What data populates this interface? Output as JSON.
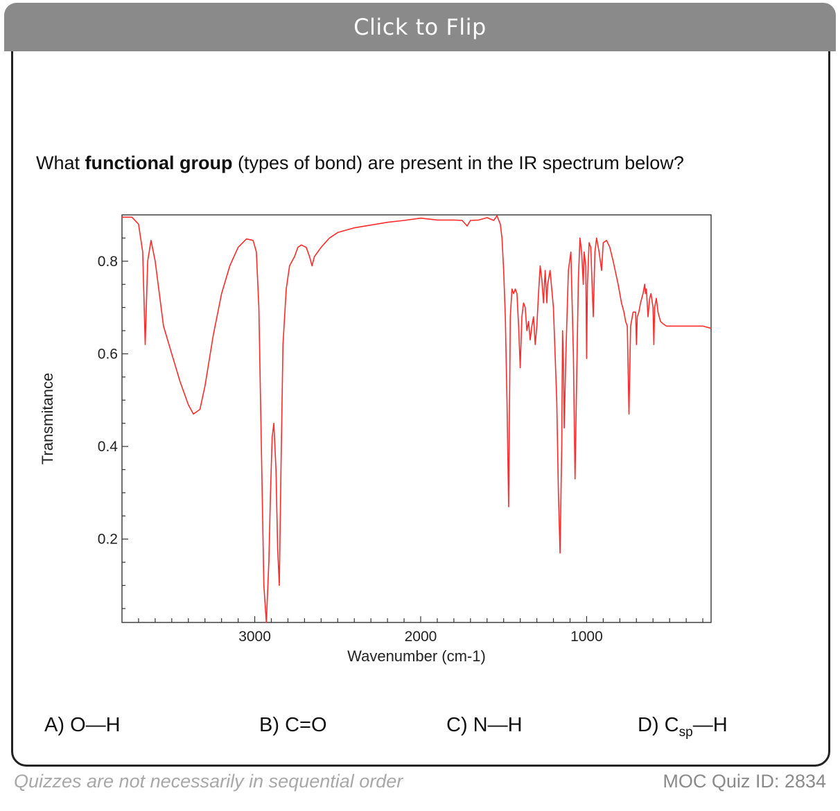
{
  "flip_bar": {
    "label": "Click to Flip"
  },
  "question": {
    "prefix": "What ",
    "emphasis": "functional group",
    "suffix": " (types of bond) are present in the IR spectrum below?"
  },
  "answers": [
    {
      "letter": "A)",
      "left": "O",
      "bond": "—",
      "right": "H",
      "sub": ""
    },
    {
      "letter": "B)",
      "left": "C=O",
      "bond": "",
      "right": "",
      "sub": ""
    },
    {
      "letter": "C)",
      "left": "N",
      "bond": "—",
      "right": "H",
      "sub": ""
    },
    {
      "letter": "D)",
      "left": "C",
      "bond": "—",
      "right": "H",
      "sub": "sp"
    }
  ],
  "footer": {
    "note": "Quizzes are not necessarily in sequential order",
    "quiz_id": "MOC Quiz ID: 2834"
  },
  "colors": {
    "spectrum": "#ff2a2a",
    "flip_bar": "#8a8a8a",
    "axis": "#333333"
  },
  "chart_data": {
    "type": "line",
    "title": "",
    "xlabel": "Wavenumber (cm-1)",
    "ylabel": "Transmitance",
    "xlim": [
      3800,
      250
    ],
    "ylim": [
      0.02,
      0.9
    ],
    "x_ticks": [
      3000,
      2000,
      1000
    ],
    "y_ticks": [
      0.2,
      0.4,
      0.6,
      0.8
    ],
    "grid": false,
    "series": [
      {
        "values": [
          [
            3800,
            0.895
          ],
          [
            3740,
            0.895
          ],
          [
            3700,
            0.88
          ],
          [
            3675,
            0.82
          ],
          [
            3660,
            0.62
          ],
          [
            3645,
            0.8
          ],
          [
            3625,
            0.845
          ],
          [
            3600,
            0.8
          ],
          [
            3550,
            0.66
          ],
          [
            3500,
            0.6
          ],
          [
            3450,
            0.54
          ],
          [
            3400,
            0.49
          ],
          [
            3370,
            0.47
          ],
          [
            3330,
            0.48
          ],
          [
            3300,
            0.53
          ],
          [
            3250,
            0.64
          ],
          [
            3200,
            0.73
          ],
          [
            3150,
            0.79
          ],
          [
            3100,
            0.83
          ],
          [
            3050,
            0.848
          ],
          [
            3010,
            0.845
          ],
          [
            2990,
            0.82
          ],
          [
            2975,
            0.7
          ],
          [
            2960,
            0.4
          ],
          [
            2945,
            0.1
          ],
          [
            2930,
            0.02
          ],
          [
            2915,
            0.15
          ],
          [
            2905,
            0.3
          ],
          [
            2895,
            0.42
          ],
          [
            2885,
            0.45
          ],
          [
            2872,
            0.35
          ],
          [
            2862,
            0.18
          ],
          [
            2852,
            0.1
          ],
          [
            2842,
            0.35
          ],
          [
            2830,
            0.62
          ],
          [
            2810,
            0.74
          ],
          [
            2790,
            0.79
          ],
          [
            2760,
            0.81
          ],
          [
            2740,
            0.83
          ],
          [
            2720,
            0.835
          ],
          [
            2690,
            0.83
          ],
          [
            2670,
            0.81
          ],
          [
            2655,
            0.79
          ],
          [
            2640,
            0.81
          ],
          [
            2600,
            0.83
          ],
          [
            2550,
            0.85
          ],
          [
            2500,
            0.862
          ],
          [
            2400,
            0.872
          ],
          [
            2300,
            0.878
          ],
          [
            2200,
            0.884
          ],
          [
            2100,
            0.888
          ],
          [
            2000,
            0.893
          ],
          [
            1900,
            0.889
          ],
          [
            1800,
            0.889
          ],
          [
            1750,
            0.888
          ],
          [
            1720,
            0.876
          ],
          [
            1700,
            0.888
          ],
          [
            1650,
            0.889
          ],
          [
            1600,
            0.894
          ],
          [
            1560,
            0.888
          ],
          [
            1540,
            0.898
          ],
          [
            1520,
            0.88
          ],
          [
            1510,
            0.85
          ],
          [
            1500,
            0.78
          ],
          [
            1490,
            0.68
          ],
          [
            1480,
            0.5
          ],
          [
            1470,
            0.27
          ],
          [
            1460,
            0.68
          ],
          [
            1450,
            0.74
          ],
          [
            1440,
            0.73
          ],
          [
            1430,
            0.74
          ],
          [
            1420,
            0.73
          ],
          [
            1410,
            0.66
          ],
          [
            1400,
            0.57
          ],
          [
            1390,
            0.68
          ],
          [
            1380,
            0.71
          ],
          [
            1370,
            0.7
          ],
          [
            1360,
            0.65
          ],
          [
            1350,
            0.67
          ],
          [
            1340,
            0.63
          ],
          [
            1330,
            0.66
          ],
          [
            1320,
            0.68
          ],
          [
            1310,
            0.62
          ],
          [
            1300,
            0.66
          ],
          [
            1290,
            0.73
          ],
          [
            1280,
            0.79
          ],
          [
            1270,
            0.76
          ],
          [
            1260,
            0.71
          ],
          [
            1250,
            0.78
          ],
          [
            1240,
            0.71
          ],
          [
            1235,
            0.75
          ],
          [
            1220,
            0.78
          ],
          [
            1200,
            0.7
          ],
          [
            1180,
            0.5
          ],
          [
            1170,
            0.3
          ],
          [
            1160,
            0.17
          ],
          [
            1150,
            0.4
          ],
          [
            1145,
            0.65
          ],
          [
            1140,
            0.58
          ],
          [
            1135,
            0.44
          ],
          [
            1125,
            0.6
          ],
          [
            1110,
            0.78
          ],
          [
            1095,
            0.82
          ],
          [
            1080,
            0.6
          ],
          [
            1070,
            0.33
          ],
          [
            1060,
            0.55
          ],
          [
            1050,
            0.76
          ],
          [
            1040,
            0.85
          ],
          [
            1030,
            0.82
          ],
          [
            1020,
            0.75
          ],
          [
            1015,
            0.82
          ],
          [
            1005,
            0.79
          ],
          [
            1000,
            0.59
          ],
          [
            995,
            0.75
          ],
          [
            985,
            0.84
          ],
          [
            975,
            0.83
          ],
          [
            960,
            0.68
          ],
          [
            950,
            0.82
          ],
          [
            940,
            0.85
          ],
          [
            925,
            0.82
          ],
          [
            910,
            0.78
          ],
          [
            900,
            0.84
          ],
          [
            880,
            0.845
          ],
          [
            860,
            0.83
          ],
          [
            840,
            0.8
          ],
          [
            810,
            0.75
          ],
          [
            790,
            0.71
          ],
          [
            775,
            0.69
          ],
          [
            765,
            0.67
          ],
          [
            755,
            0.66
          ],
          [
            745,
            0.47
          ],
          [
            735,
            0.66
          ],
          [
            720,
            0.69
          ],
          [
            705,
            0.69
          ],
          [
            700,
            0.62
          ],
          [
            695,
            0.68
          ],
          [
            685,
            0.69
          ],
          [
            675,
            0.71
          ],
          [
            660,
            0.73
          ],
          [
            650,
            0.75
          ],
          [
            645,
            0.73
          ],
          [
            640,
            0.74
          ],
          [
            630,
            0.68
          ],
          [
            620,
            0.72
          ],
          [
            612,
            0.73
          ],
          [
            600,
            0.7
          ],
          [
            595,
            0.62
          ],
          [
            590,
            0.7
          ],
          [
            580,
            0.72
          ],
          [
            570,
            0.69
          ],
          [
            555,
            0.67
          ],
          [
            540,
            0.665
          ],
          [
            520,
            0.66
          ],
          [
            500,
            0.66
          ],
          [
            480,
            0.66
          ],
          [
            460,
            0.66
          ],
          [
            440,
            0.66
          ],
          [
            420,
            0.66
          ],
          [
            400,
            0.66
          ],
          [
            380,
            0.66
          ],
          [
            350,
            0.66
          ],
          [
            300,
            0.66
          ],
          [
            250,
            0.655
          ]
        ]
      }
    ]
  }
}
